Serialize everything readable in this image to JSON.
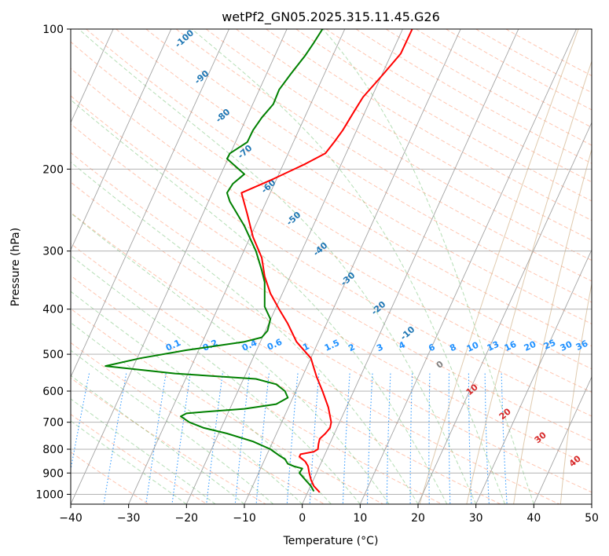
{
  "chart_data": {
    "type": "line",
    "title": "wetPf2_GN05.2025.315.11.45.G26",
    "xlabel": "Temperature (°C)",
    "ylabel": "Pressure (hPa)",
    "xlim": [
      -40,
      50
    ],
    "ylim": [
      1050,
      100
    ],
    "y_scale": "log",
    "grid": true,
    "x_ticks": [
      -40,
      -30,
      -20,
      -10,
      0,
      10,
      20,
      30,
      40,
      50
    ],
    "y_ticks": [
      1000,
      900,
      800,
      700,
      600,
      500,
      400,
      300,
      200,
      100
    ],
    "series": [
      {
        "color": "#ff0000",
        "points": [
          [
            3.0,
            990
          ],
          [
            2.0,
            960
          ],
          [
            1.5,
            930
          ],
          [
            1.2,
            900
          ],
          [
            1.0,
            870
          ],
          [
            0.5,
            850
          ],
          [
            -0.5,
            830
          ],
          [
            -0.3,
            820
          ],
          [
            2.0,
            810
          ],
          [
            2.7,
            800
          ],
          [
            2.8,
            780
          ],
          [
            3.0,
            760
          ],
          [
            4.0,
            740
          ],
          [
            4.8,
            720
          ],
          [
            5.0,
            700
          ],
          [
            4.5,
            650
          ],
          [
            3.5,
            600
          ],
          [
            2.5,
            560
          ],
          [
            2.0,
            535
          ],
          [
            1.5,
            510
          ],
          [
            -1.0,
            470
          ],
          [
            -2.5,
            430
          ],
          [
            -4.0,
            400
          ],
          [
            -5.5,
            370
          ],
          [
            -6.5,
            340
          ],
          [
            -7.0,
            310
          ],
          [
            -8.5,
            280
          ],
          [
            -9.5,
            250
          ],
          [
            -10.5,
            225
          ],
          [
            -5.0,
            210
          ],
          [
            0.5,
            195
          ],
          [
            4.0,
            185
          ],
          [
            5.5,
            175
          ],
          [
            7.0,
            165
          ],
          [
            9.0,
            150
          ],
          [
            10.5,
            140
          ],
          [
            14.0,
            125
          ],
          [
            17.0,
            113
          ],
          [
            19.0,
            100
          ]
        ]
      },
      {
        "color": "#008000",
        "points": [
          [
            2.0,
            985
          ],
          [
            1.5,
            960
          ],
          [
            0.5,
            930
          ],
          [
            -0.5,
            900
          ],
          [
            0.0,
            880
          ],
          [
            -1.5,
            870
          ],
          [
            -2.5,
            860
          ],
          [
            -3.0,
            840
          ],
          [
            -4.0,
            825
          ],
          [
            -5.5,
            800
          ],
          [
            -8.5,
            770
          ],
          [
            -13.0,
            740
          ],
          [
            -17.0,
            720
          ],
          [
            -19.5,
            700
          ],
          [
            -21.0,
            680
          ],
          [
            -20.0,
            670
          ],
          [
            -17.0,
            665
          ],
          [
            -10.0,
            655
          ],
          [
            -4.5,
            640
          ],
          [
            -2.5,
            620
          ],
          [
            -3.0,
            600
          ],
          [
            -4.5,
            580
          ],
          [
            -8.0,
            565
          ],
          [
            -22.0,
            550
          ],
          [
            -34.0,
            530
          ],
          [
            -28.0,
            510
          ],
          [
            -20.0,
            490
          ],
          [
            -10.0,
            470
          ],
          [
            -7.0,
            460
          ],
          [
            -6.0,
            445
          ],
          [
            -5.5,
            420
          ],
          [
            -6.5,
            395
          ],
          [
            -6.5,
            375
          ],
          [
            -6.5,
            350
          ],
          [
            -7.0,
            330
          ],
          [
            -8.0,
            300
          ],
          [
            -10.0,
            265
          ],
          [
            -12.5,
            235
          ],
          [
            -13.0,
            225
          ],
          [
            -12.0,
            215
          ],
          [
            -10.0,
            205
          ],
          [
            -12.0,
            195
          ],
          [
            -13.0,
            190
          ],
          [
            -12.5,
            185
          ],
          [
            -11.0,
            180
          ],
          [
            -9.5,
            175
          ],
          [
            -8.5,
            165
          ],
          [
            -7.0,
            155
          ],
          [
            -5.0,
            145
          ],
          [
            -4.0,
            135
          ],
          [
            -2.0,
            125
          ],
          [
            0.5,
            114
          ],
          [
            2.0,
            107
          ],
          [
            3.5,
            100
          ]
        ]
      }
    ],
    "isotherm_labels": {
      "values": [
        "-100",
        "-90",
        "-80",
        "-70",
        "-60",
        "-50",
        "-40",
        "-30",
        "-20",
        "-10"
      ],
      "color": "#1f77b4"
    },
    "mixing_ratio_labels": {
      "values": [
        "0.1",
        "0.2",
        "0.4",
        "0.6",
        "1",
        "1.5",
        "2",
        "3",
        "4",
        "6",
        "8",
        "10",
        "13",
        "16",
        "20",
        "25",
        "30",
        "36"
      ],
      "color": "#1e90ff"
    },
    "dry_adiabat_label": {
      "value": "0",
      "color": "#808080"
    },
    "moist_adiabat_labels": {
      "values": [
        "10",
        "20",
        "30",
        "40"
      ],
      "color": "#d62728"
    }
  }
}
